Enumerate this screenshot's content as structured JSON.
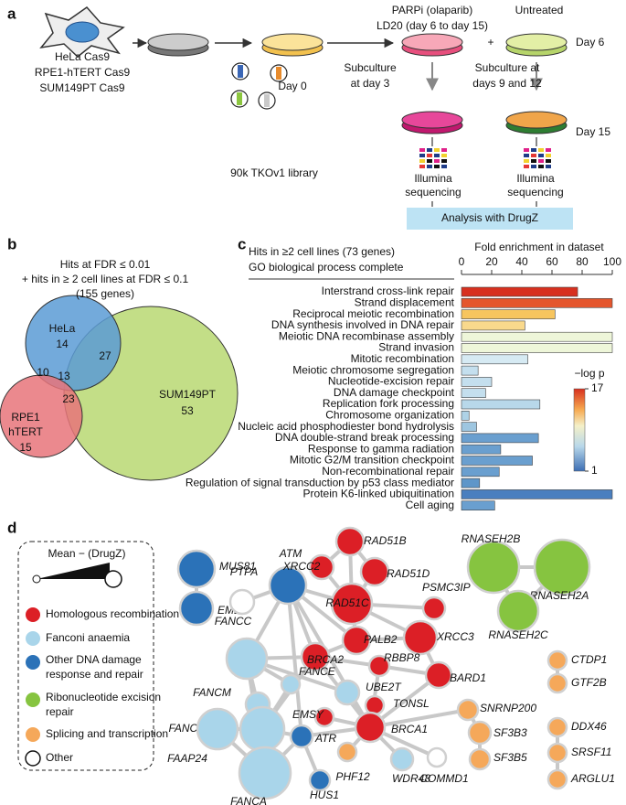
{
  "panel_a": {
    "label": "a",
    "cell_lines": [
      "HeLa Cas9",
      "RPE1-hTERT Cas9",
      "SUM149PT Cas9"
    ],
    "library": "90k TKOv1 library",
    "day0": "Day 0",
    "subculture1": [
      "Subculture",
      "at day 3"
    ],
    "parpi": [
      "PARPi (olaparib)",
      "LD20 (day 6 to day 15)"
    ],
    "untreated": "Untreated",
    "plus": "+",
    "day6": "Day 6",
    "subculture2": [
      "Subculture at",
      "days 9 and 12"
    ],
    "day15": "Day 15",
    "sequencing": [
      "Illumina",
      "sequencing"
    ],
    "analysis": "Analysis with DrugZ"
  },
  "panel_b": {
    "label": "b",
    "title": [
      "Hits at FDR ≤ 0.01",
      "+ hits in ≥ 2 cell lines at FDR ≤ 0.1",
      "(155 genes)"
    ],
    "hela": "HeLa",
    "hela_only": 14,
    "hela_sum": 27,
    "hela_rpe": 10,
    "all": 13,
    "rpe_sum": 23,
    "rpe1": [
      "RPE1",
      "hTERT"
    ],
    "rpe_only": 15,
    "sum": "SUM149PT",
    "sum_only": 53
  },
  "chart_data": {
    "type": "bar",
    "orientation": "horizontal",
    "label": "c",
    "title": [
      "Hits in ≥2 cell lines (73 genes)",
      "GO biological process complete"
    ],
    "xlabel": "Fold enrichment in dataset",
    "categories": [
      "Interstrand cross-link repair",
      "Strand displacement",
      "Reciprocal meiotic recombination",
      "DNA synthesis involved in DNA repair",
      "Meiotic DNA recombinase assembly",
      "Strand invasion",
      "Mitotic recombination",
      "Meiotic chromosome segregation",
      "Nucleotide-excision repair",
      "DNA damage checkpoint",
      "Replication fork processing",
      "Chromosome organization",
      "Nucleic acid phosphodiester bond hydrolysis",
      "DNA double-strand break processing",
      "Response to gamma radiation",
      "Mitotic G2/M transition checkpoint",
      "Non-recombinational repair",
      "Regulation of signal transduction by p53 class mediator",
      "Protein K6-linked ubiquitination",
      "Cell aging"
    ],
    "values": [
      77,
      100,
      62,
      42,
      100,
      100,
      44,
      11,
      20,
      16,
      52,
      5,
      10,
      51,
      26,
      47,
      25,
      12,
      100,
      22
    ],
    "colors": [
      "#d7301f",
      "#e4562d",
      "#f7c55e",
      "#f9d98c",
      "#eef6d9",
      "#eef6d9",
      "#d6eaf3",
      "#c4dfee",
      "#c4dfee",
      "#c4dfee",
      "#b8d8ea",
      "#aed2e7",
      "#9ec6e0",
      "#6a9fcf",
      "#6a9fcf",
      "#6a9fcf",
      "#6a9fcf",
      "#5e96c9",
      "#4a7fbf",
      "#6a9fcf"
    ],
    "xlim": [
      0,
      100
    ],
    "xticks": [
      0,
      20,
      40,
      60,
      80,
      100
    ],
    "colorbar": {
      "label": "−log p",
      "lim": [
        1,
        17
      ],
      "ticks": [
        17,
        1
      ]
    }
  },
  "panel_d": {
    "label": "d",
    "legend": {
      "size_title": "Mean − (DrugZ)",
      "items": [
        [
          "Homologous recombination"
        ],
        [
          "Fanconi anaemia"
        ],
        [
          "Other DNA damage",
          "response and repair"
        ],
        [
          "Ribonucleotide excision",
          "repair"
        ],
        [
          "Splicing and transcription"
        ],
        [
          "Other"
        ]
      ]
    },
    "nodes": [
      "MUS81",
      "EME1",
      "PTPA",
      "ATM",
      "RAD51B",
      "XRCC2",
      "RAD51D",
      "RAD51C",
      "PSMC3IP",
      "XRCC3",
      "PALB2",
      "BRCA2",
      "RBBP8",
      "BARD1",
      "UBE2T",
      "TONSL",
      "FANCE",
      "BRCA1",
      "EMSY",
      "ATR",
      "HUS1",
      "PHF12",
      "COMMD1",
      "WDR48",
      "FANCC",
      "FANCM",
      "FANCD2",
      "FAAP24",
      "FANCA",
      "SNRNP200",
      "SF3B3",
      "SF3B5",
      "RNASEH2B",
      "RNASEH2A",
      "RNASEH2C",
      "CTDP1",
      "GTF2B",
      "DDX46",
      "SRSF11",
      "ARGLU1"
    ]
  }
}
